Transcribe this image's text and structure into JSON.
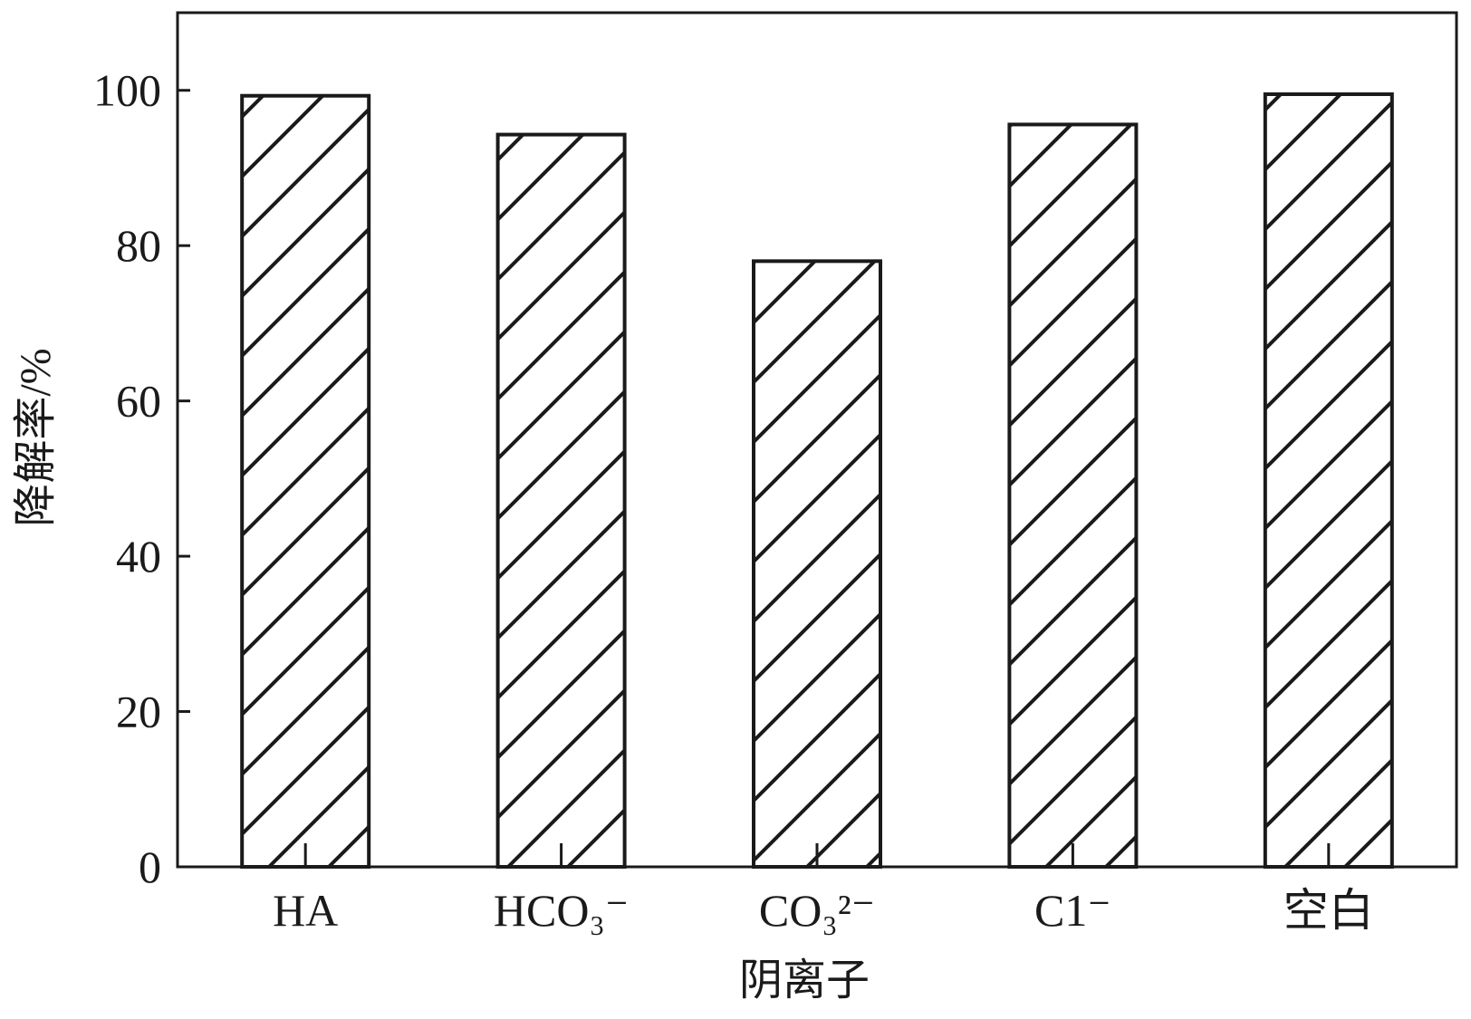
{
  "chart_data": {
    "type": "bar",
    "categories": [
      "HA",
      "HCO₃⁻",
      "CO₃²⁻",
      "C1⁻",
      "空白"
    ],
    "values": [
      99.3,
      94.3,
      78.0,
      95.6,
      99.5
    ],
    "xlabel": "阴离子",
    "ylabel": "降解率/%",
    "ylim": [
      0,
      110
    ],
    "yticks": [
      0,
      20,
      40,
      60,
      80,
      100
    ],
    "grid": false,
    "bar_fill": "diagonal hatch",
    "colors": {
      "stroke": "#1a1a1a",
      "background": "#ffffff"
    }
  }
}
